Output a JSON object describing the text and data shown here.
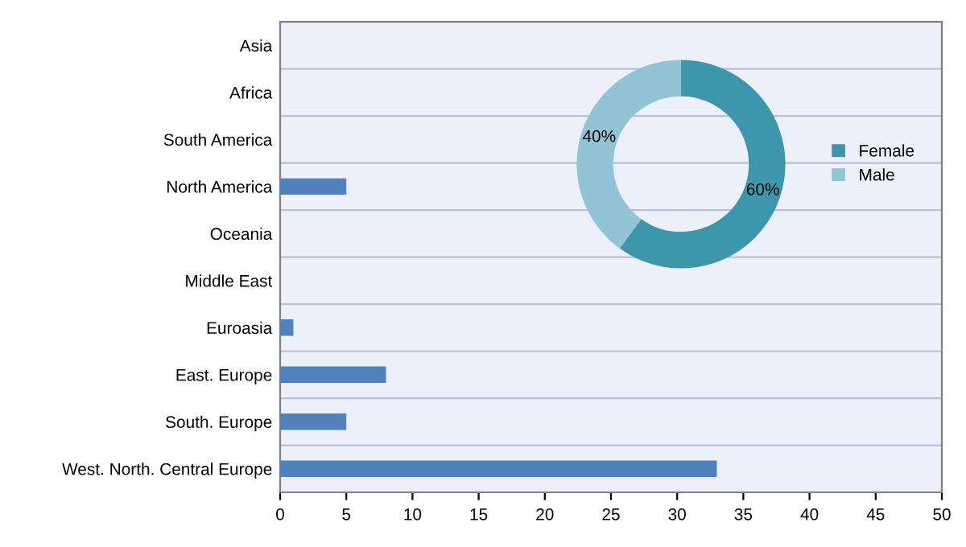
{
  "chart_data": [
    {
      "type": "bar",
      "orientation": "horizontal",
      "categories": [
        "Asia",
        "Africa",
        "South America",
        "North America",
        "Oceania",
        "Middle East",
        "Euroasia",
        "East. Europe",
        "South. Europe",
        "West. North. Central Europe"
      ],
      "values": [
        0,
        0,
        0,
        5,
        0,
        0,
        1,
        8,
        5,
        33
      ],
      "color": "#4f81bd",
      "xlim": [
        0,
        50
      ],
      "xticks": [
        0,
        5,
        10,
        15,
        20,
        25,
        30,
        35,
        40,
        45,
        50
      ],
      "grid": "y"
    },
    {
      "type": "donut",
      "categories": [
        "Female",
        "Male"
      ],
      "values": [
        60,
        40
      ],
      "colors": [
        "#3e96ad",
        "#92c4d6"
      ],
      "value_labels": [
        "60%",
        "40%"
      ],
      "legend": "right"
    }
  ]
}
